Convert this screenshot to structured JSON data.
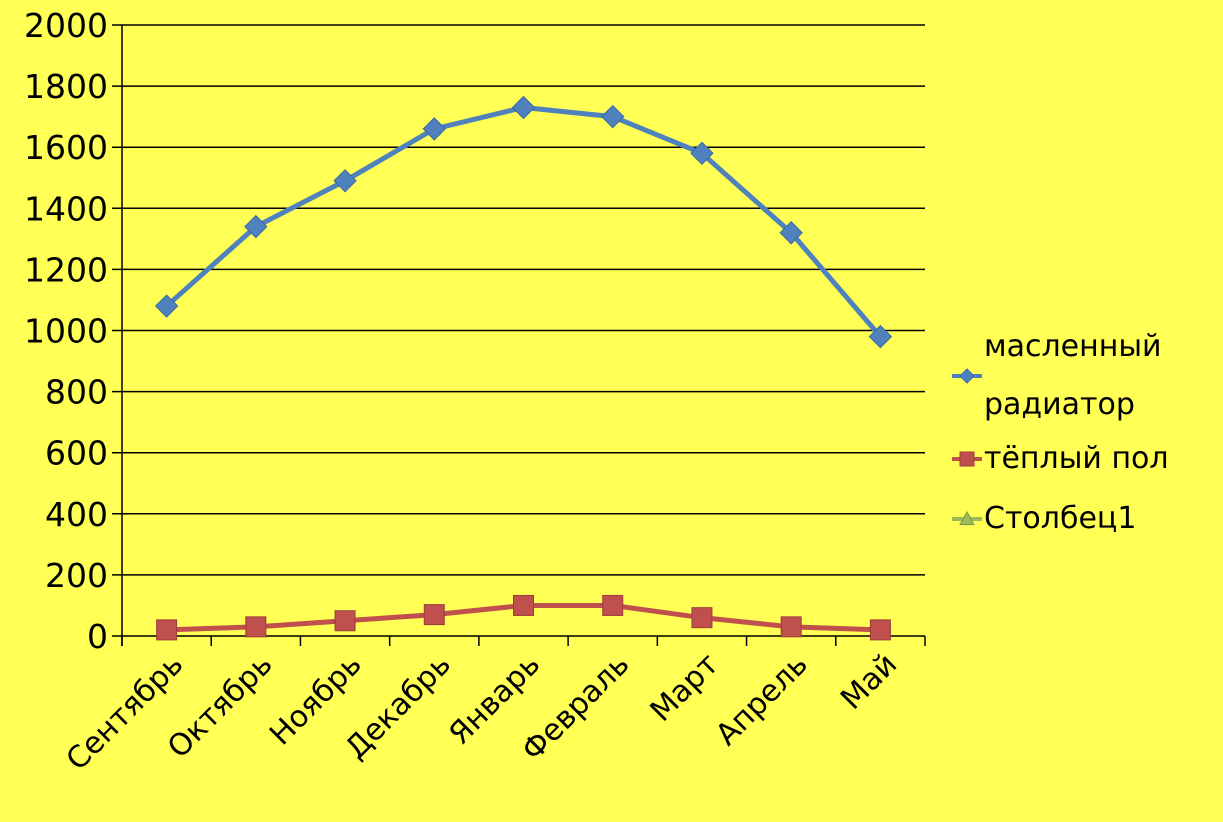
{
  "chart_data": {
    "type": "line",
    "categories": [
      "Сентябрь",
      "Октябрь",
      "Ноябрь",
      "Декабрь",
      "Январь",
      "Февраль",
      "Март",
      "Апрель",
      "Май"
    ],
    "series": [
      {
        "name": "масленный радиатор",
        "color": "#4f81bd",
        "marker": "diamond",
        "values": [
          1080,
          1340,
          1490,
          1660,
          1730,
          1700,
          1580,
          1320,
          980
        ]
      },
      {
        "name": "тёплый пол",
        "color": "#c0504d",
        "marker": "square",
        "values": [
          20,
          30,
          50,
          70,
          100,
          100,
          60,
          30,
          20
        ]
      },
      {
        "name": "Столбец1",
        "color": "#9bbb59",
        "marker": "triangle",
        "values": [
          null,
          null,
          null,
          null,
          null,
          null,
          null,
          null,
          null
        ]
      }
    ],
    "ylim": [
      0,
      2000
    ],
    "yticks": [
      0,
      200,
      400,
      600,
      800,
      1000,
      1200,
      1400,
      1600,
      1800,
      2000
    ],
    "grid": true,
    "legend": "right"
  }
}
